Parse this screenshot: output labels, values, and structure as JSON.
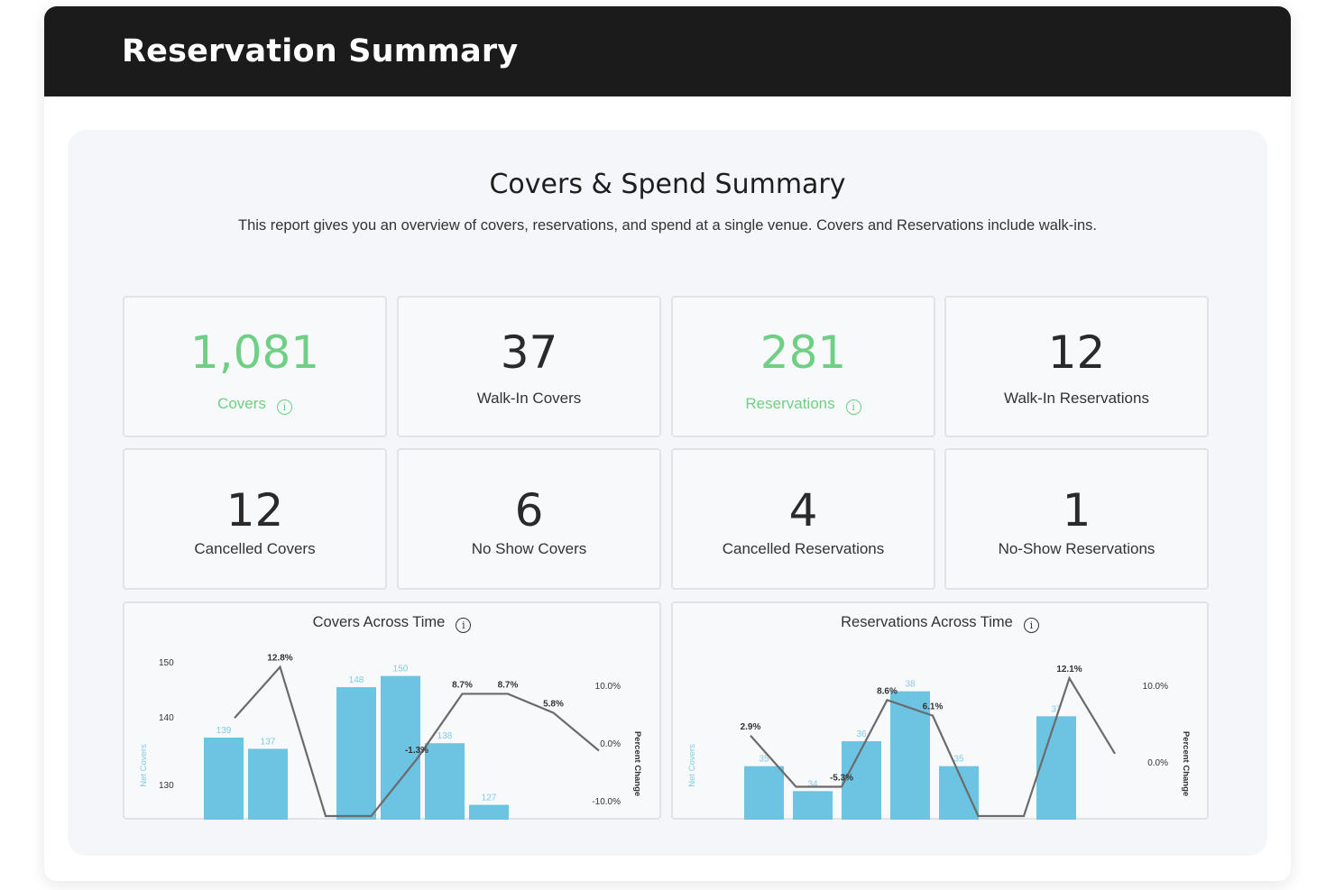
{
  "header": {
    "title": "Reservation Summary"
  },
  "summary": {
    "title": "Covers & Spend Summary",
    "description": "This report gives you an overview of covers, reservations, and spend at a single venue. Covers and Reservations include walk-ins.",
    "cards": [
      {
        "value": "1,081",
        "label": "Covers",
        "info": true,
        "accent": true
      },
      {
        "value": "37",
        "label": "Walk-In Covers",
        "info": false,
        "accent": false
      },
      {
        "value": "281",
        "label": "Reservations",
        "info": true,
        "accent": true
      },
      {
        "value": "12",
        "label": "Walk-In Reservations",
        "info": false,
        "accent": false
      },
      {
        "value": "12",
        "label": "Cancelled Covers",
        "info": false,
        "accent": false
      },
      {
        "value": "6",
        "label": "No Show Covers",
        "info": false,
        "accent": false
      },
      {
        "value": "4",
        "label": "Cancelled Reservations",
        "info": false,
        "accent": false
      },
      {
        "value": "1",
        "label": "No-Show Reservations",
        "info": false,
        "accent": false
      }
    ]
  },
  "colors": {
    "accent_green": "#6fcf85",
    "bar_blue": "#6cc3e2",
    "line_gray": "#6b6b6b",
    "header_bg": "#1b1b1b"
  },
  "chart_data": [
    {
      "type": "bar",
      "title": "Covers Across Time",
      "ylabel": "Net Covers",
      "y2label": "Percent Change",
      "y_ticks": [
        "150",
        "140",
        "130"
      ],
      "y2_ticks": [
        "10.0%",
        "0.0%",
        "-10.0%"
      ],
      "ylim": [
        125,
        153
      ],
      "y2lim": [
        -10,
        14
      ],
      "series": [
        {
          "name": "Net Covers",
          "kind": "bar",
          "values": [
            139,
            137,
            null,
            148,
            150,
            138,
            127,
            null
          ],
          "labels": [
            "139",
            "137",
            "",
            "148",
            "150",
            "138",
            "127",
            ""
          ]
        },
        {
          "name": "Percent Change",
          "kind": "line",
          "values": [
            5.0,
            12.8,
            -10.0,
            -10.0,
            -1.3,
            8.7,
            8.7,
            5.8,
            0.0
          ],
          "labels": [
            "",
            "12.8%",
            "",
            "",
            "-1.3%",
            "8.7%",
            "8.7%",
            "5.8%",
            ""
          ]
        }
      ]
    },
    {
      "type": "bar",
      "title": "Reservations Across Time",
      "ylabel": "Net Covers",
      "y2label": "Percent Change",
      "y2_ticks": [
        "10.0%",
        "0.0%"
      ],
      "ylim": [
        33,
        39
      ],
      "y2lim": [
        -10,
        14
      ],
      "series": [
        {
          "name": "Net Covers",
          "kind": "bar",
          "values": [
            35,
            34,
            36,
            38,
            35,
            null,
            37,
            null
          ],
          "labels": [
            "35",
            "34",
            "36",
            "38",
            "35",
            "",
            "37",
            ""
          ]
        },
        {
          "name": "Percent Change",
          "kind": "line",
          "values": [
            2.9,
            -5.3,
            -5.3,
            8.6,
            6.1,
            -10.0,
            -10.0,
            12.1,
            0.0
          ],
          "labels": [
            "2.9%",
            "",
            "-5.3%",
            "8.6%",
            "6.1%",
            "",
            "",
            "12.1%",
            ""
          ]
        }
      ]
    }
  ]
}
